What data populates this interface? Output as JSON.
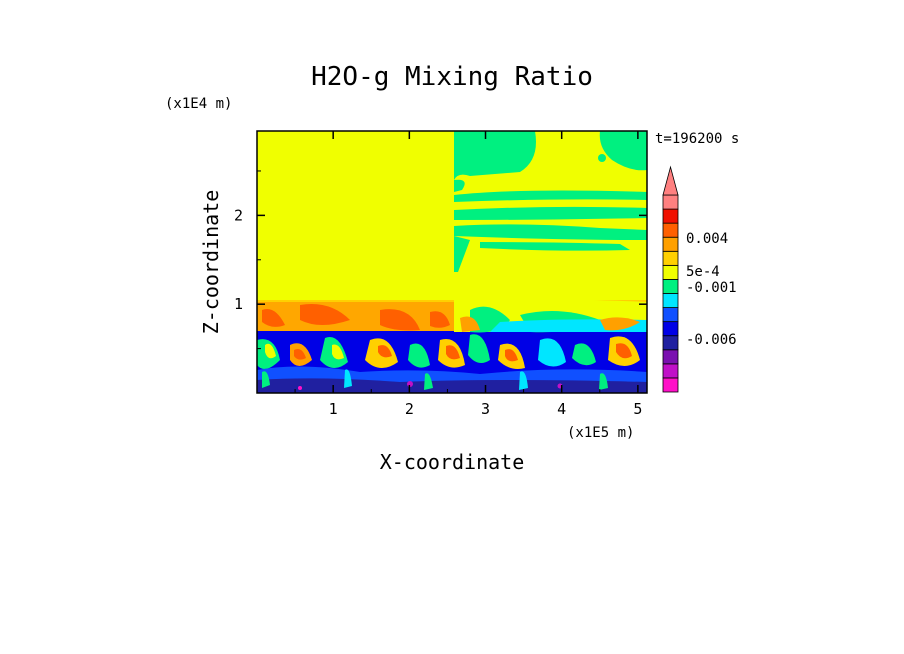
{
  "chart_data": {
    "type": "heatmap",
    "title": "H2O-g Mixing Ratio",
    "xlabel": "X-coordinate",
    "ylabel": "Z-coordinate",
    "x_scale_label": "(x1E5 m)",
    "y_scale_label": "(x1E4 m)",
    "time_label": "t=196200 s",
    "xlim": [
      0,
      5.12
    ],
    "ylim": [
      0,
      2.95
    ],
    "x_ticks": [
      1,
      2,
      3,
      4,
      5
    ],
    "x_tick_labels": [
      "1",
      "2",
      "3",
      "4",
      "5"
    ],
    "y_ticks": [
      1,
      2
    ],
    "y_tick_labels": [
      "1",
      "2"
    ],
    "colorbar": {
      "colors": [
        "#ff10c8",
        "#c010c8",
        "#7a10b0",
        "#2020a0",
        "#0000e6",
        "#1050ff",
        "#00e6ff",
        "#00f080",
        "#f0ff00",
        "#ffd000",
        "#ffa000",
        "#ff6000",
        "#f01000",
        "#ff8080"
      ],
      "labels": [
        "-0.006",
        "-0.001",
        "5e-4",
        "0.004"
      ]
    },
    "regions": [
      {
        "level": "upper-left",
        "x": [
          0,
          2.58
        ],
        "z": [
          1.02,
          2.95
        ],
        "color": "#f0ff00"
      },
      {
        "level": "upper-right",
        "x": [
          2.58,
          5.12
        ],
        "z": [
          1.02,
          2.95
        ],
        "color": "#f0ff00"
      },
      {
        "level": "mid",
        "x": [
          0,
          5.12
        ],
        "z": [
          0.72,
          1.02
        ],
        "color": "#ffd000"
      },
      {
        "level": "low",
        "x": [
          0,
          5.12
        ],
        "z": [
          0.0,
          0.72
        ],
        "color": "#0000e6"
      }
    ]
  }
}
